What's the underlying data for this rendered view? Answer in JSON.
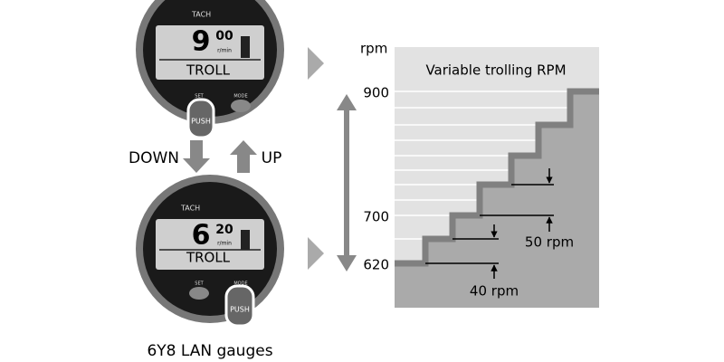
{
  "gauges": [
    {
      "label": "TACH",
      "big": "9",
      "small": "00",
      "unit": "r/min",
      "mode": "TROLL",
      "set": "SET",
      "mode_button": "MODE",
      "push": "PUSH"
    },
    {
      "label": "TACH",
      "big": "6",
      "small": "20",
      "unit": "r/min",
      "mode": "TROLL",
      "set": "SET",
      "mode_button": "MODE",
      "push": "PUSH"
    }
  ],
  "arrows": {
    "down": "DOWN",
    "up": "UP"
  },
  "caption": "6Y8 LAN gauges",
  "chart": {
    "unit": "rpm",
    "title": "Variable trolling RPM",
    "ticks": [
      "900",
      "700",
      "620"
    ],
    "annotations": [
      "50 rpm",
      "40 rpm"
    ]
  }
}
